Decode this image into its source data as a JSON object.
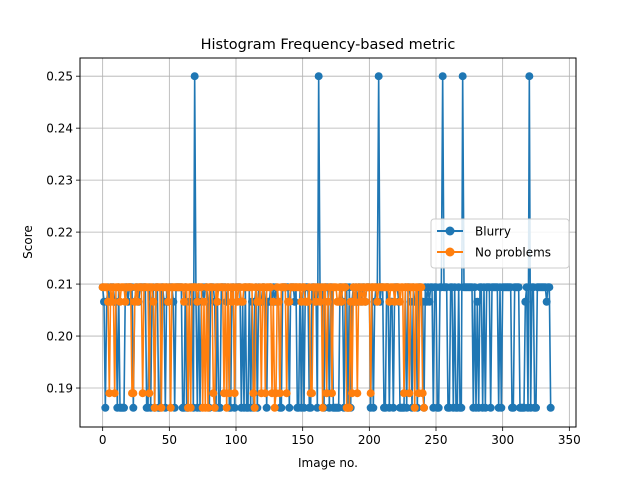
{
  "chart_data": {
    "type": "line",
    "title": "Histogram Frequency-based metric",
    "xlabel": "Image no.",
    "ylabel": "Score",
    "xlim": [
      -17,
      355
    ],
    "ylim": [
      0.1825,
      0.2535
    ],
    "xticks": [
      0,
      50,
      100,
      150,
      200,
      250,
      300,
      350
    ],
    "yticks": [
      0.19,
      0.2,
      0.21,
      0.22,
      0.23,
      0.24,
      0.25
    ],
    "ytick_labels": [
      "0.19",
      "0.20",
      "0.21",
      "0.22",
      "0.23",
      "0.24",
      "0.25"
    ],
    "grid": true,
    "legend_position": "center-right",
    "series": [
      {
        "name": "Blurry",
        "color": "#1f77b4",
        "marker": "circle",
        "levels": {
          "low": 0.1862,
          "mid": 0.2066,
          "high": 0.2094,
          "peak": 0.25
        },
        "peaks_x": [
          69,
          162,
          207,
          255,
          270,
          320
        ],
        "x_end": 336
      },
      {
        "name": "No problems",
        "color": "#ff7f0e",
        "marker": "circle",
        "levels": {
          "low": 0.1862,
          "low2": 0.189,
          "mid": 0.2066,
          "high": 0.2094
        },
        "x_end": 241
      }
    ]
  }
}
